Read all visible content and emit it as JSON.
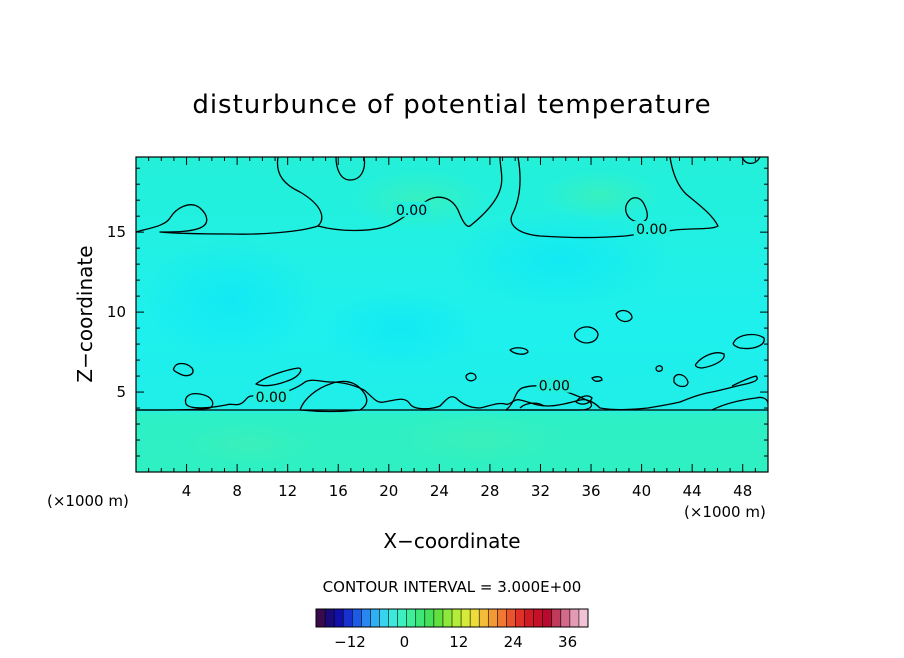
{
  "chart_data": {
    "type": "heatmap",
    "title": "disturbunce of potential temperature",
    "xlabel": "X−coordinate",
    "ylabel": "Z−coordinate",
    "xunit_left": "(×1000 m)",
    "xunit_right": "(×1000 m)",
    "xlim": [
      0,
      50
    ],
    "ylim": [
      0,
      19.7
    ],
    "xticks": [
      4,
      8,
      12,
      16,
      20,
      24,
      28,
      32,
      36,
      40,
      44,
      48
    ],
    "yticks": [
      5,
      10,
      15
    ],
    "contour_labels": [
      {
        "text": "0.00",
        "x": 21.8,
        "y": 16.4
      },
      {
        "text": "0.00",
        "x": 40.8,
        "y": 15.2
      },
      {
        "text": "0.00",
        "x": 33.1,
        "y": 5.4
      },
      {
        "text": "0.00",
        "x": 10.7,
        "y": 4.7
      }
    ],
    "contour_interval_text": "CONTOUR INTERVAL = 3.000E+00",
    "colorbar": {
      "min": -19.5,
      "max": 40.5,
      "ticks": [
        -12,
        0,
        12,
        24,
        36
      ],
      "colors": [
        "#3a0a4f",
        "#1a0a7a",
        "#1010a8",
        "#1830d0",
        "#1e5ae6",
        "#2a86f0",
        "#2fb0f2",
        "#36d4ee",
        "#3ceadc",
        "#3cf0c0",
        "#3cf09a",
        "#3ee878",
        "#46e05a",
        "#62e040",
        "#8ce83a",
        "#b4ec3a",
        "#d6ea3a",
        "#eedc3a",
        "#f4bc38",
        "#f49a34",
        "#f07830",
        "#ea542c",
        "#e03028",
        "#d01a26",
        "#c41028",
        "#b80a2e",
        "#c03a5c",
        "#d46a8a",
        "#e49ab4",
        "#f0c4d6"
      ]
    }
  }
}
